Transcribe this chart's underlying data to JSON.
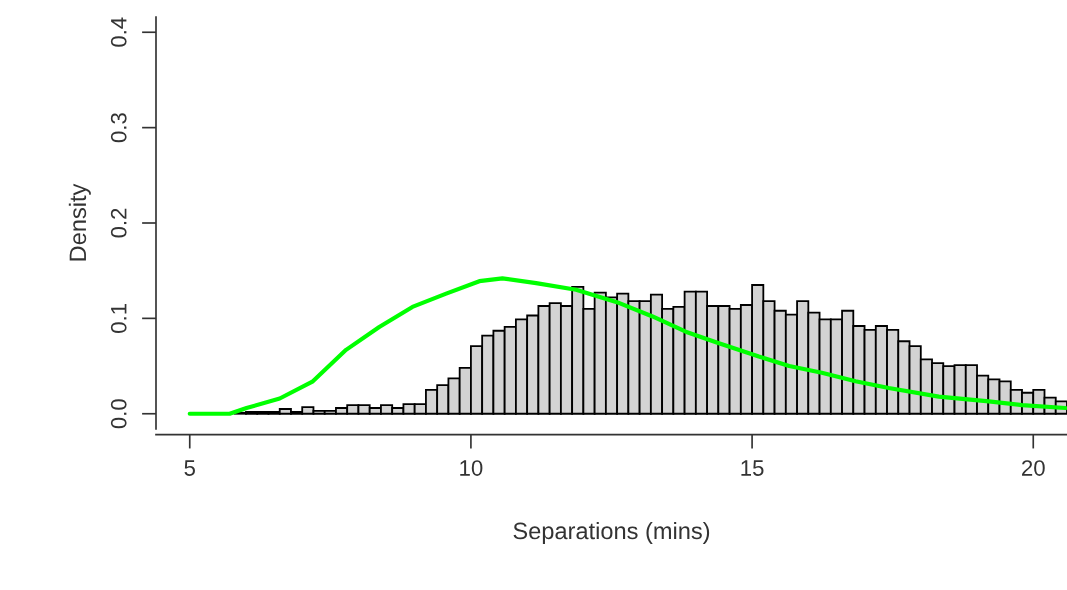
{
  "chart_data": {
    "type": "histogram",
    "xlabel": "Separations (mins)",
    "ylabel": "Density",
    "color": "#d3d3d3",
    "bins": [
      5.8,
      6.0,
      6.2,
      6.4,
      6.6,
      6.8,
      7.0,
      7.2,
      7.4,
      7.6,
      7.8,
      8.0,
      8.2,
      8.4,
      8.6,
      8.8,
      9.0,
      9.2,
      9.4,
      9.6,
      9.8,
      10.0,
      10.2,
      10.4,
      10.6,
      10.8,
      11.0,
      11.2,
      11.4,
      11.6,
      11.8,
      12.0,
      12.2,
      12.4,
      12.6,
      12.8,
      13.0,
      13.2,
      13.4,
      13.6,
      13.8,
      14.0,
      14.2,
      14.4,
      14.6,
      14.8,
      15.0,
      15.2,
      15.4,
      15.6,
      15.8,
      16.0,
      16.2,
      16.4,
      16.6,
      16.8,
      17.0,
      17.2,
      17.4,
      17.6,
      17.8,
      18.0,
      18.2,
      18.4,
      18.6,
      18.8,
      19.0,
      19.2,
      19.4,
      19.6,
      19.8,
      20.0,
      20.2,
      20.4,
      20.6
    ],
    "values": [
      0.001,
      0.002,
      0.002,
      0.002,
      0.005,
      0.002,
      0.007,
      0.003,
      0.003,
      0.006,
      0.009,
      0.009,
      0.006,
      0.009,
      0.006,
      0.01,
      0.01,
      0.025,
      0.03,
      0.037,
      0.048,
      0.071,
      0.082,
      0.087,
      0.091,
      0.099,
      0.103,
      0.113,
      0.116,
      0.113,
      0.133,
      0.11,
      0.127,
      0.122,
      0.126,
      0.118,
      0.118,
      0.125,
      0.11,
      0.112,
      0.128,
      0.128,
      0.113,
      0.113,
      0.11,
      0.114,
      0.135,
      0.118,
      0.108,
      0.104,
      0.118,
      0.106,
      0.099,
      0.099,
      0.108,
      0.092,
      0.088,
      0.092,
      0.088,
      0.076,
      0.071,
      0.057,
      0.053,
      0.05,
      0.051,
      0.051,
      0.04,
      0.036,
      0.034,
      0.025,
      0.022,
      0.025,
      0.017,
      0.013
    ],
    "series": [
      {
        "type": "line",
        "color": "#00ff00",
        "x": [
          5.0,
          5.71,
          6.01,
          6.6,
          7.19,
          7.78,
          8.37,
          8.96,
          9.56,
          10.15,
          10.56,
          11.16,
          11.87,
          12.64,
          13.23,
          13.82,
          14.41,
          14.92,
          15.12,
          15.66,
          16.24,
          16.84,
          17.43,
          18.32,
          19.21,
          19.8,
          20.57
        ],
        "values": [
          0.0,
          0.0,
          0.006,
          0.016,
          0.034,
          0.067,
          0.091,
          0.112,
          0.126,
          0.139,
          0.142,
          0.137,
          0.13,
          0.116,
          0.102,
          0.086,
          0.074,
          0.064,
          0.06,
          0.05,
          0.043,
          0.034,
          0.027,
          0.018,
          0.013,
          0.009,
          0.006
        ]
      }
    ],
    "xlim": [
      4.4,
      20.6
    ],
    "ylim": [
      -0.016,
      0.416
    ],
    "xticks": [
      5,
      10,
      15,
      20
    ],
    "yticks": [
      {
        "value": 0.0,
        "label": "0.0"
      },
      {
        "value": 0.1,
        "label": "0.1"
      },
      {
        "value": 0.2,
        "label": "0.2"
      },
      {
        "value": 0.3,
        "label": "0.3"
      },
      {
        "value": 0.4,
        "label": "0.4"
      }
    ]
  }
}
